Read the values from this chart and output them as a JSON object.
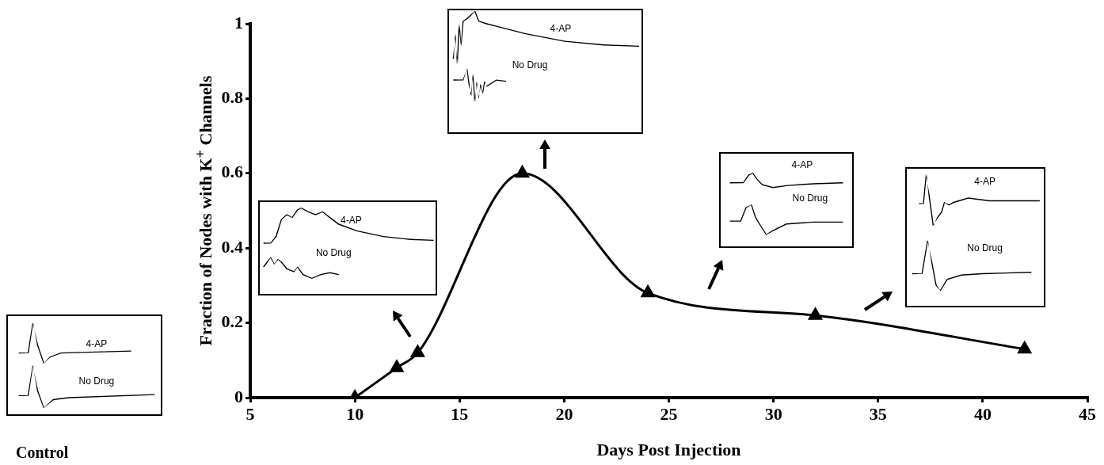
{
  "chart_data": {
    "type": "line",
    "xlabel": "Days Post Injection",
    "ylabel": "Fraction of Nodes with K$^{+}$ Channels",
    "x": [
      10,
      12,
      13,
      18,
      24,
      32,
      42
    ],
    "values": [
      0,
      0.08,
      0.12,
      0.6,
      0.28,
      0.22,
      0.13
    ],
    "color": "#000000",
    "marker": "triangle",
    "grid": false,
    "legend": false,
    "xlim": [
      5,
      45
    ],
    "xticks": [
      5,
      10,
      15,
      20,
      25,
      30,
      35,
      40,
      45
    ],
    "ylim": [
      0,
      1
    ],
    "yticks": [
      0,
      0.2,
      0.4,
      0.6,
      0.8,
      1
    ],
    "annotations": [
      "Control",
      "4-AP",
      "No Drug",
      "4-AP",
      "No Drug",
      "4-AP",
      "No Drug",
      "4-AP",
      "No Drug",
      "4-AP",
      "No Drug"
    ]
  }
}
